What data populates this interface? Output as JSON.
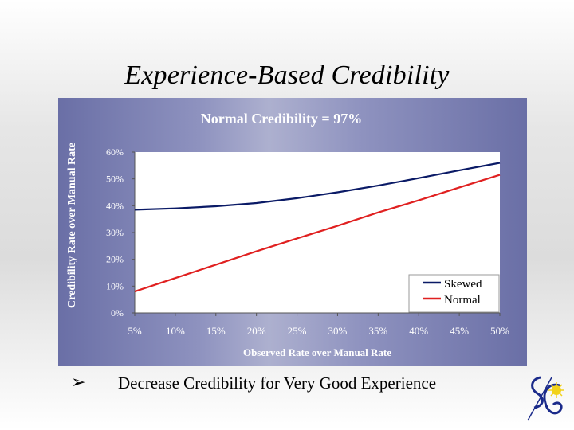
{
  "slide": {
    "title": "Experience-Based Credibility",
    "bullet": "Decrease Credibility for Very Good Experience"
  },
  "colors": {
    "skewed": "#0a1a66",
    "normal": "#e02020",
    "axis_text": "#ffffff",
    "plot_bg": "#ffffff"
  },
  "chart_data": {
    "type": "line",
    "title": "Normal Credibility = 97%",
    "xlabel": "Observed Rate over Manual Rate",
    "ylabel": "Credibility Rate over Manual Rate",
    "x_ticks": [
      "5%",
      "10%",
      "15%",
      "20%",
      "25%",
      "30%",
      "35%",
      "40%",
      "45%",
      "50%"
    ],
    "y_ticks": [
      "0%",
      "10%",
      "20%",
      "30%",
      "40%",
      "50%",
      "60%"
    ],
    "xlim": [
      5,
      50
    ],
    "ylim": [
      0,
      60
    ],
    "grid": false,
    "legend_position": "bottom-right",
    "x": [
      5,
      10,
      15,
      20,
      25,
      30,
      35,
      40,
      45,
      50
    ],
    "series": [
      {
        "name": "Skewed",
        "values": [
          38.5,
          39.0,
          39.8,
          41.0,
          42.8,
          45.0,
          47.5,
          50.3,
          53.2,
          56.0
        ]
      },
      {
        "name": "Normal",
        "values": [
          8.0,
          13.0,
          18.0,
          23.0,
          27.8,
          32.5,
          37.5,
          42.0,
          46.8,
          51.5
        ]
      }
    ]
  }
}
